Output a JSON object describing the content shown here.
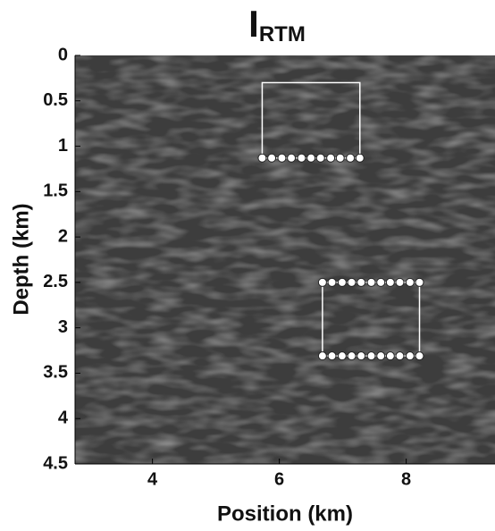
{
  "chart_data": {
    "type": "image",
    "title": {
      "main": "I",
      "subscript": "RTM"
    },
    "xlabel": "Position (km)",
    "ylabel": "Depth (km)",
    "xlim": [
      2.78,
      9.4
    ],
    "xticks": [
      4,
      6,
      8
    ],
    "ylim": [
      0,
      4.5
    ],
    "yticks": [
      0,
      0.5,
      1,
      1.5,
      2,
      2.5,
      3,
      3.5,
      4,
      4.5
    ],
    "y_inverted": true,
    "box_color": "#ffffff",
    "boxes": [
      {
        "x": [
          5.73,
          7.27
        ],
        "y": [
          0.3,
          1.13
        ]
      },
      {
        "x": [
          6.68,
          8.21
        ],
        "y": [
          2.5,
          3.31
        ]
      }
    ],
    "receivers": [
      {
        "x": [
          5.73,
          5.88,
          6.04,
          6.19,
          6.35,
          6.5,
          6.65,
          6.81,
          6.96,
          7.12,
          7.27
        ],
        "y": 1.13
      },
      {
        "x": [
          6.68,
          6.83,
          6.99,
          7.14,
          7.29,
          7.45,
          7.6,
          7.75,
          7.9,
          8.06,
          8.21
        ],
        "y": 2.5
      },
      {
        "x": [
          6.68,
          6.83,
          6.99,
          7.14,
          7.29,
          7.45,
          7.6,
          7.75,
          7.9,
          8.06,
          8.21
        ],
        "y": 3.31
      }
    ]
  }
}
